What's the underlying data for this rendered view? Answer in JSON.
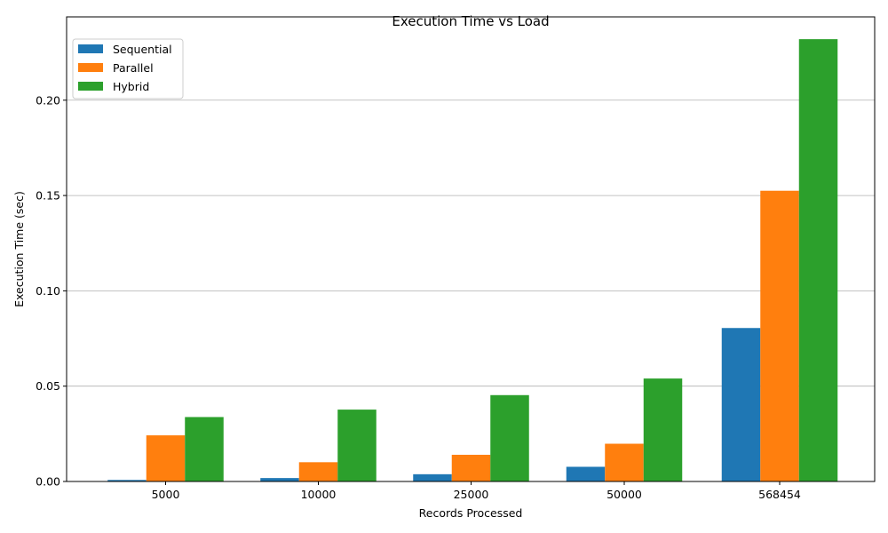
{
  "chart_data": {
    "type": "bar",
    "title": "Execution Time vs Load",
    "xlabel": "Records Processed",
    "ylabel": "Execution Time (sec)",
    "categories": [
      "5000",
      "10000",
      "25000",
      "50000",
      "568454"
    ],
    "series": [
      {
        "name": "Sequential",
        "color": "#1f77b4",
        "values": [
          0.0008,
          0.0018,
          0.0038,
          0.0077,
          0.0805
        ]
      },
      {
        "name": "Parallel",
        "color": "#ff7f0e",
        "values": [
          0.0242,
          0.0101,
          0.014,
          0.0198,
          0.1525
        ]
      },
      {
        "name": "Hybrid",
        "color": "#2ca02c",
        "values": [
          0.0338,
          0.0377,
          0.0453,
          0.054,
          0.232
        ]
      }
    ],
    "ylim": [
      0,
      0.2437
    ],
    "yticks": [
      "0.00",
      "0.05",
      "0.10",
      "0.15",
      "0.20"
    ],
    "ytick_values": [
      0,
      0.05,
      0.1,
      0.15,
      0.2
    ],
    "grid": "y-major",
    "legend_position": "upper-left"
  }
}
